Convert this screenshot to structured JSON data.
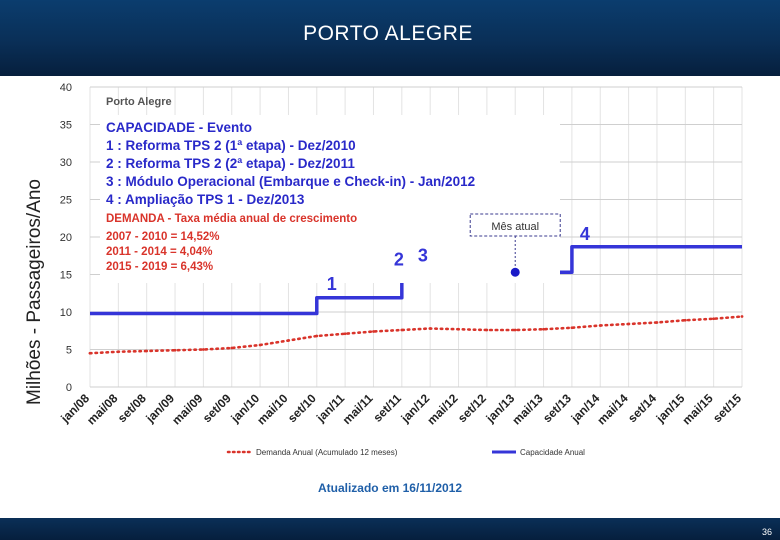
{
  "header": {
    "title": "PORTO ALEGRE"
  },
  "footer": {
    "page_number": "36"
  },
  "colors": {
    "header_bg": "#0a2f57",
    "capacity": "#3535d8",
    "demand": "#d9342b",
    "title_blue": "#2929c9",
    "demand_text": "#d9342b"
  },
  "chart_data": {
    "type": "line",
    "title": "Porto Alegre",
    "ylabel": "Milhões - Passageiros/Ano",
    "xlabel": "",
    "ylim": [
      0,
      40
    ],
    "yticks": [
      0,
      5,
      10,
      15,
      20,
      25,
      30,
      35,
      40
    ],
    "grid": true,
    "legend_position": "bottom",
    "x": [
      "jan/08",
      "mai/08",
      "set/08",
      "jan/09",
      "mai/09",
      "set/09",
      "jan/10",
      "mai/10",
      "set/10",
      "jan/11",
      "mai/11",
      "set/11",
      "jan/12",
      "mai/12",
      "set/12",
      "jan/13",
      "mai/13",
      "set/13",
      "jan/14",
      "mai/14",
      "set/14",
      "jan/15",
      "mai/15",
      "set/15"
    ],
    "series": [
      {
        "name": "Demanda Anual (Acumulado 12 meses)",
        "style": "dotted",
        "color": "#d9342b",
        "values": [
          4.5,
          4.7,
          4.8,
          4.9,
          5.0,
          5.2,
          5.6,
          6.2,
          6.8,
          7.1,
          7.4,
          7.6,
          7.8,
          7.7,
          7.6,
          7.6,
          7.7,
          7.9,
          8.2,
          8.4,
          8.6,
          8.9,
          9.1,
          9.4
        ]
      },
      {
        "name": "Capacidade Anual",
        "style": "solid",
        "color": "#3535d8",
        "steps": [
          {
            "x": "jan/08",
            "y": 9.8
          },
          {
            "x": "set/10",
            "y": 9.8
          },
          {
            "x": "set/10",
            "y": 11.9
          },
          {
            "x": "set/11",
            "y": 11.9
          },
          {
            "x": "set/11",
            "y": 15.3
          },
          {
            "x": "set/13",
            "y": 15.3
          },
          {
            "x": "set/13",
            "y": 18.7
          },
          {
            "x": "set/15",
            "y": 18.7
          }
        ]
      }
    ],
    "annotations": {
      "capacity_title": "CAPACIDADE - Evento",
      "capacity_lines": [
        "1 : Reforma TPS 2 (1ª etapa) - Dez/2010",
        "2 : Reforma TPS 2 (2ª etapa) - Dez/2011",
        "3 : Módulo Operacional (Embarque e Check-in) - Jan/2012",
        "4 : Ampliação TPS 1 - Dez/2013"
      ],
      "demand_title": "DEMANDA - Taxa média anual de crescimento",
      "demand_lines": [
        "2007 - 2010 = 14,52%",
        "2011 - 2014 =   4,04%",
        "2015 - 2019 =   6,43%"
      ],
      "markers": [
        {
          "label": "1",
          "x": "set/10"
        },
        {
          "label": "2",
          "x": "set/11"
        },
        {
          "label": "3",
          "x": "set/11"
        },
        {
          "label": "4",
          "x": "set/13"
        }
      ],
      "current_month_label": "Mês atual",
      "current_month_x": "jan/13",
      "updated": "Atualizado em 16/11/2012"
    }
  }
}
